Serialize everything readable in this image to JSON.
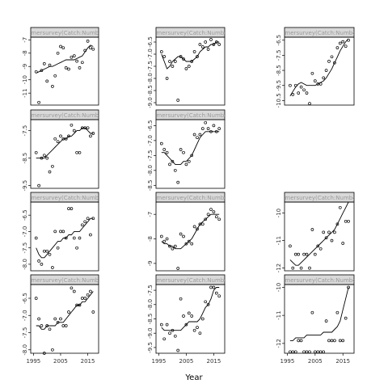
{
  "chart_data": {
    "type": "scatter",
    "xlabel": "Year",
    "strip_label": "nmersurvey(Catch:Number",
    "x_ticks": [
      1995,
      2005,
      2015
    ],
    "xlim": [
      1994,
      2019
    ],
    "panels": [
      {
        "id": "r1c1",
        "ylim": [
          -11.9,
          -6.8
        ],
        "y_ticks": [
          -7,
          -8,
          -9,
          -10,
          -11
        ],
        "x": [
          1996,
          1997,
          1998,
          1999,
          2000,
          2001,
          2002,
          2003,
          2004,
          2005,
          2006,
          2007,
          2008,
          2009,
          2010,
          2011,
          2012,
          2013,
          2014,
          2015,
          2016,
          2017
        ],
        "y": [
          -9.4,
          -11.7,
          -9.3,
          -8.8,
          -10.1,
          -8.9,
          -10.5,
          -9.7,
          -8.0,
          -7.5,
          -7.6,
          -9.1,
          -9.2,
          -8.3,
          -8.2,
          -8.6,
          -9.1,
          -8.7,
          -7.8,
          -7.1,
          -7.6,
          -7.7
        ],
        "fit": [
          -9.5,
          -9.4,
          -9.3,
          -9.2,
          -9.1,
          -9.0,
          -9.0,
          -8.9,
          -8.8,
          -8.7,
          -8.6,
          -8.5,
          -8.5,
          -8.5,
          -8.5,
          -8.4,
          -8.3,
          -8.2,
          -7.9,
          -7.6,
          -7.4,
          -7.5
        ]
      },
      {
        "id": "r1c2",
        "ylim": [
          -9.1,
          -6.3
        ],
        "y_ticks": [
          -6.5,
          -7.0,
          -7.5,
          -8.0,
          -8.5,
          -9.0
        ],
        "x": [
          1996,
          1997,
          1998,
          1999,
          2000,
          2001,
          2002,
          2003,
          2004,
          2005,
          2006,
          2007,
          2008,
          2009,
          2010,
          2011,
          2012,
          2013,
          2014,
          2015,
          2016,
          2017
        ],
        "y": [
          -6.9,
          -7.1,
          -8.0,
          -7.3,
          -7.5,
          -7.3,
          -8.9,
          -7.1,
          -7.2,
          -7.6,
          -7.5,
          -7.3,
          -6.9,
          -7.1,
          -6.6,
          -6.7,
          -6.5,
          -6.8,
          -6.4,
          -6.6,
          -6.5,
          -6.6
        ],
        "fit": [
          -7.0,
          -7.3,
          -7.6,
          -7.5,
          -7.3,
          -7.2,
          -7.1,
          -7.1,
          -7.2,
          -7.3,
          -7.3,
          -7.3,
          -7.2,
          -7.1,
          -6.9,
          -6.8,
          -6.7,
          -6.7,
          -6.6,
          -6.6,
          -6.5,
          -6.5
        ]
      },
      {
        "id": "r1c3",
        "ylim": [
          -10.8,
          -6.3
        ],
        "y_ticks": [
          -6.5,
          -7.5,
          -8.5,
          -9.5,
          -10.5
        ],
        "x": [
          1996,
          1997,
          1998,
          1999,
          2000,
          2001,
          2002,
          2003,
          2004,
          2005,
          2006,
          2007,
          2008,
          2009,
          2010,
          2011,
          2012,
          2013,
          2014,
          2015,
          2016,
          2017
        ],
        "y": [
          -9.5,
          -10.1,
          -9.5,
          -10.0,
          -9.6,
          -9.8,
          -10.0,
          -10.7,
          -8.7,
          -9.2,
          -9.4,
          -9.4,
          -9.0,
          -8.5,
          -7.9,
          -7.6,
          -8.0,
          -7.0,
          -6.7,
          -6.6,
          -6.9,
          -6.5
        ],
        "fit": [
          -10.2,
          -9.9,
          -9.6,
          -9.4,
          -9.3,
          -9.4,
          -9.5,
          -9.5,
          -9.5,
          -9.5,
          -9.4,
          -9.3,
          -9.2,
          -9.0,
          -8.7,
          -8.4,
          -8.0,
          -7.6,
          -7.2,
          -6.9,
          -6.6,
          -6.4
        ]
      },
      {
        "id": "r2c1",
        "ylim": [
          -9.6,
          -7.1
        ],
        "y_ticks": [
          -7.5,
          -8.5,
          -9.5
        ],
        "x": [
          1996,
          1997,
          1998,
          1999,
          2000,
          2001,
          2002,
          2003,
          2004,
          2005,
          2006,
          2007,
          2008,
          2009,
          2010,
          2011,
          2012,
          2013,
          2014,
          2015,
          2016,
          2017
        ],
        "y": [
          -8.3,
          -9.5,
          -8.5,
          -8.4,
          -8.5,
          -9.0,
          -8.8,
          -7.8,
          -7.9,
          -7.7,
          -7.8,
          -7.8,
          -7.7,
          -7.3,
          -7.5,
          -8.3,
          -8.3,
          -7.4,
          -7.4,
          -7.4,
          -7.7,
          -7.6
        ],
        "fit": [
          -8.5,
          -8.5,
          -8.5,
          -8.5,
          -8.4,
          -8.3,
          -8.2,
          -8.1,
          -8.0,
          -7.9,
          -7.8,
          -7.8,
          -7.7,
          -7.7,
          -7.6,
          -7.5,
          -7.5,
          -7.4,
          -7.4,
          -7.5,
          -7.6,
          -7.6
        ]
      },
      {
        "id": "r2c2",
        "ylim": [
          -8.6,
          -6.3
        ],
        "y_ticks": [
          -6.5,
          -7.0,
          -7.5,
          -8.0,
          -8.5
        ],
        "x": [
          1996,
          1997,
          1998,
          1999,
          2000,
          2001,
          2002,
          2003,
          2004,
          2005,
          2006,
          2007,
          2008,
          2009,
          2010,
          2011,
          2012,
          2013,
          2014,
          2015,
          2016,
          2017
        ],
        "y": [
          -7.1,
          -7.3,
          -7.4,
          -7.8,
          -7.7,
          -8.0,
          -8.4,
          -7.3,
          -7.4,
          -7.8,
          -7.7,
          -7.5,
          -6.8,
          -6.9,
          -6.8,
          -6.6,
          -6.4,
          -6.6,
          -6.7,
          -6.5,
          -6.7,
          -6.6
        ],
        "fit": [
          -7.4,
          -7.4,
          -7.5,
          -7.6,
          -7.7,
          -7.8,
          -7.8,
          -7.8,
          -7.7,
          -7.7,
          -7.6,
          -7.5,
          -7.3,
          -7.1,
          -6.9,
          -6.8,
          -6.7,
          -6.7,
          -6.7,
          -6.7,
          -6.7,
          -6.7
        ]
      },
      {
        "id": "r3c1",
        "ylim": [
          -8.2,
          -6.1
        ],
        "y_ticks": [
          -6.5,
          -7.0,
          -7.5,
          -8.0
        ],
        "x": [
          1996,
          1997,
          1998,
          1999,
          2000,
          2001,
          2002,
          2003,
          2004,
          2005,
          2006,
          2007,
          2008,
          2009,
          2010,
          2011,
          2012,
          2013,
          2014,
          2015,
          2016,
          2017
        ],
        "y": [
          -7.2,
          -7.9,
          -8.0,
          -7.6,
          -7.6,
          -7.7,
          -8.1,
          -7.0,
          -7.5,
          -7.0,
          -7.0,
          -7.2,
          -6.3,
          -6.3,
          -7.2,
          -7.5,
          -7.2,
          -6.8,
          -6.7,
          -6.6,
          -7.1,
          -6.6
        ],
        "fit": [
          -7.5,
          -7.7,
          -7.8,
          -7.8,
          -7.7,
          -7.6,
          -7.5,
          -7.4,
          -7.3,
          -7.3,
          -7.2,
          -7.2,
          -7.1,
          -7.1,
          -7.0,
          -7.0,
          -7.0,
          -6.9,
          -6.8,
          -6.7,
          -6.6,
          -6.6
        ]
      },
      {
        "id": "r3c2",
        "ylim": [
          -9.3,
          -6.5
        ],
        "y_ticks": [
          -7.0,
          -8.0,
          -9.0
        ],
        "x": [
          1996,
          1997,
          1998,
          1999,
          2000,
          2001,
          2002,
          2003,
          2004,
          2005,
          2006,
          2007,
          2008,
          2009,
          2010,
          2011,
          2012,
          2013,
          2014,
          2015,
          2016,
          2017
        ],
        "y": [
          -7.9,
          -8.1,
          -8.0,
          -8.3,
          -8.4,
          -8.3,
          -9.2,
          -7.8,
          -7.9,
          -8.2,
          -8.1,
          -8.2,
          -7.5,
          -7.6,
          -7.4,
          -7.4,
          -7.2,
          -7.0,
          -6.8,
          -6.9,
          -7.1,
          -7.2
        ],
        "fit": [
          -8.1,
          -8.2,
          -8.2,
          -8.3,
          -8.3,
          -8.4,
          -8.4,
          -8.4,
          -8.3,
          -8.2,
          -8.1,
          -8.0,
          -7.8,
          -7.6,
          -7.4,
          -7.3,
          -7.2,
          -7.1,
          -7.0,
          -7.0,
          -7.0,
          -7.0
        ]
      },
      {
        "id": "r3c3",
        "ylim": [
          -12.1,
          -9.6
        ],
        "y_ticks": [
          -10.0,
          -11.0,
          -12.0
        ],
        "x": [
          1996,
          1997,
          1998,
          1999,
          2000,
          2001,
          2002,
          2003,
          2004,
          2005,
          2006,
          2007,
          2008,
          2009,
          2010,
          2011,
          2012,
          2013,
          2014,
          2015,
          2016,
          2017
        ],
        "y": [
          -11.2,
          -12.0,
          -11.5,
          -11.5,
          -12.0,
          -11.5,
          -11.5,
          -12.0,
          -10.6,
          -11.5,
          -11.2,
          -11.3,
          -10.7,
          -10.9,
          -10.7,
          -11.0,
          -10.7,
          -10.4,
          -9.8,
          -11.1,
          -10.3,
          -10.3
        ],
        "fit": [
          -11.7,
          -11.8,
          -11.9,
          -11.9,
          -11.8,
          -11.7,
          -11.6,
          -11.5,
          -11.4,
          -11.3,
          -11.2,
          -11.1,
          -11.0,
          -10.9,
          -10.8,
          -10.7,
          -10.6,
          -10.4,
          -10.2,
          -10.0,
          -9.8,
          -9.6
        ]
      },
      {
        "id": "r4c1",
        "ylim": [
          -8.1,
          -6.1
        ],
        "y_ticks": [
          -6.5,
          -7.0,
          -7.5,
          -8.0
        ],
        "x": [
          1996,
          1997,
          1998,
          1999,
          2000,
          2001,
          2002,
          2003,
          2004,
          2005,
          2006,
          2007,
          2008,
          2009,
          2010,
          2011,
          2012,
          2013,
          2014,
          2015,
          2016,
          2017
        ],
        "y": [
          -6.5,
          -7.1,
          -7.3,
          -8.1,
          -7.3,
          -7.4,
          -8.0,
          -7.1,
          -7.2,
          -7.1,
          -7.3,
          -7.3,
          -6.9,
          -6.2,
          -6.3,
          -6.7,
          -6.7,
          -6.5,
          -6.5,
          -6.4,
          -6.3,
          -6.9
        ],
        "fit": [
          -7.3,
          -7.3,
          -7.4,
          -7.4,
          -7.3,
          -7.3,
          -7.3,
          -7.3,
          -7.2,
          -7.2,
          -7.2,
          -7.1,
          -7.0,
          -6.9,
          -6.8,
          -6.7,
          -6.7,
          -6.6,
          -6.6,
          -6.5,
          -6.4,
          -6.3
        ]
      },
      {
        "id": "r4c2",
        "ylim": [
          -9.7,
          -7.3
        ],
        "y_ticks": [
          -7.5,
          -8.0,
          -8.5,
          -9.0,
          -9.5
        ],
        "x": [
          1996,
          1997,
          1998,
          1999,
          2000,
          2001,
          2002,
          2003,
          2004,
          2005,
          2006,
          2007,
          2008,
          2009,
          2010,
          2011,
          2012,
          2013,
          2014,
          2015,
          2016,
          2017
        ],
        "y": [
          -8.7,
          -9.2,
          -8.7,
          -9.0,
          -8.9,
          -9.1,
          -9.6,
          -7.8,
          -8.4,
          -8.7,
          -8.3,
          -8.4,
          -8.9,
          -8.8,
          -9.0,
          -8.5,
          -7.9,
          -8.0,
          -7.4,
          -7.4,
          -7.6,
          -7.7
        ],
        "fit": [
          -8.8,
          -8.9,
          -8.9,
          -8.9,
          -8.9,
          -8.9,
          -8.9,
          -8.9,
          -8.8,
          -8.7,
          -8.6,
          -8.6,
          -8.6,
          -8.6,
          -8.5,
          -8.3,
          -8.1,
          -8.0,
          -7.8,
          -7.5,
          -7.4,
          -7.4
        ]
      },
      {
        "id": "r4c3",
        "ylim": [
          -12.35,
          -9.9
        ],
        "y_ticks": [
          -10.0,
          -11.0,
          -12.0
        ],
        "x": [
          1996,
          1997,
          1998,
          1999,
          2000,
          2001,
          2002,
          2003,
          2004,
          2005,
          2006,
          2007,
          2008,
          2009,
          2010,
          2011,
          2012,
          2013,
          2014,
          2015,
          2016,
          2017
        ],
        "y": [
          -12.3,
          -12.3,
          -12.3,
          -11.9,
          -11.9,
          -12.3,
          -12.3,
          -12.3,
          -10.9,
          -12.3,
          -12.3,
          -12.3,
          -12.3,
          -11.2,
          -11.9,
          -11.9,
          -11.9,
          -10.9,
          -11.9,
          -11.9,
          -11.1,
          -10.0
        ],
        "fit": [
          -11.9,
          -11.9,
          -11.8,
          -11.8,
          -11.8,
          -11.8,
          -11.7,
          -11.7,
          -11.7,
          -11.7,
          -11.7,
          -11.7,
          -11.6,
          -11.6,
          -11.6,
          -11.6,
          -11.5,
          -11.4,
          -11.2,
          -10.8,
          -10.4,
          -10.0
        ]
      }
    ]
  }
}
